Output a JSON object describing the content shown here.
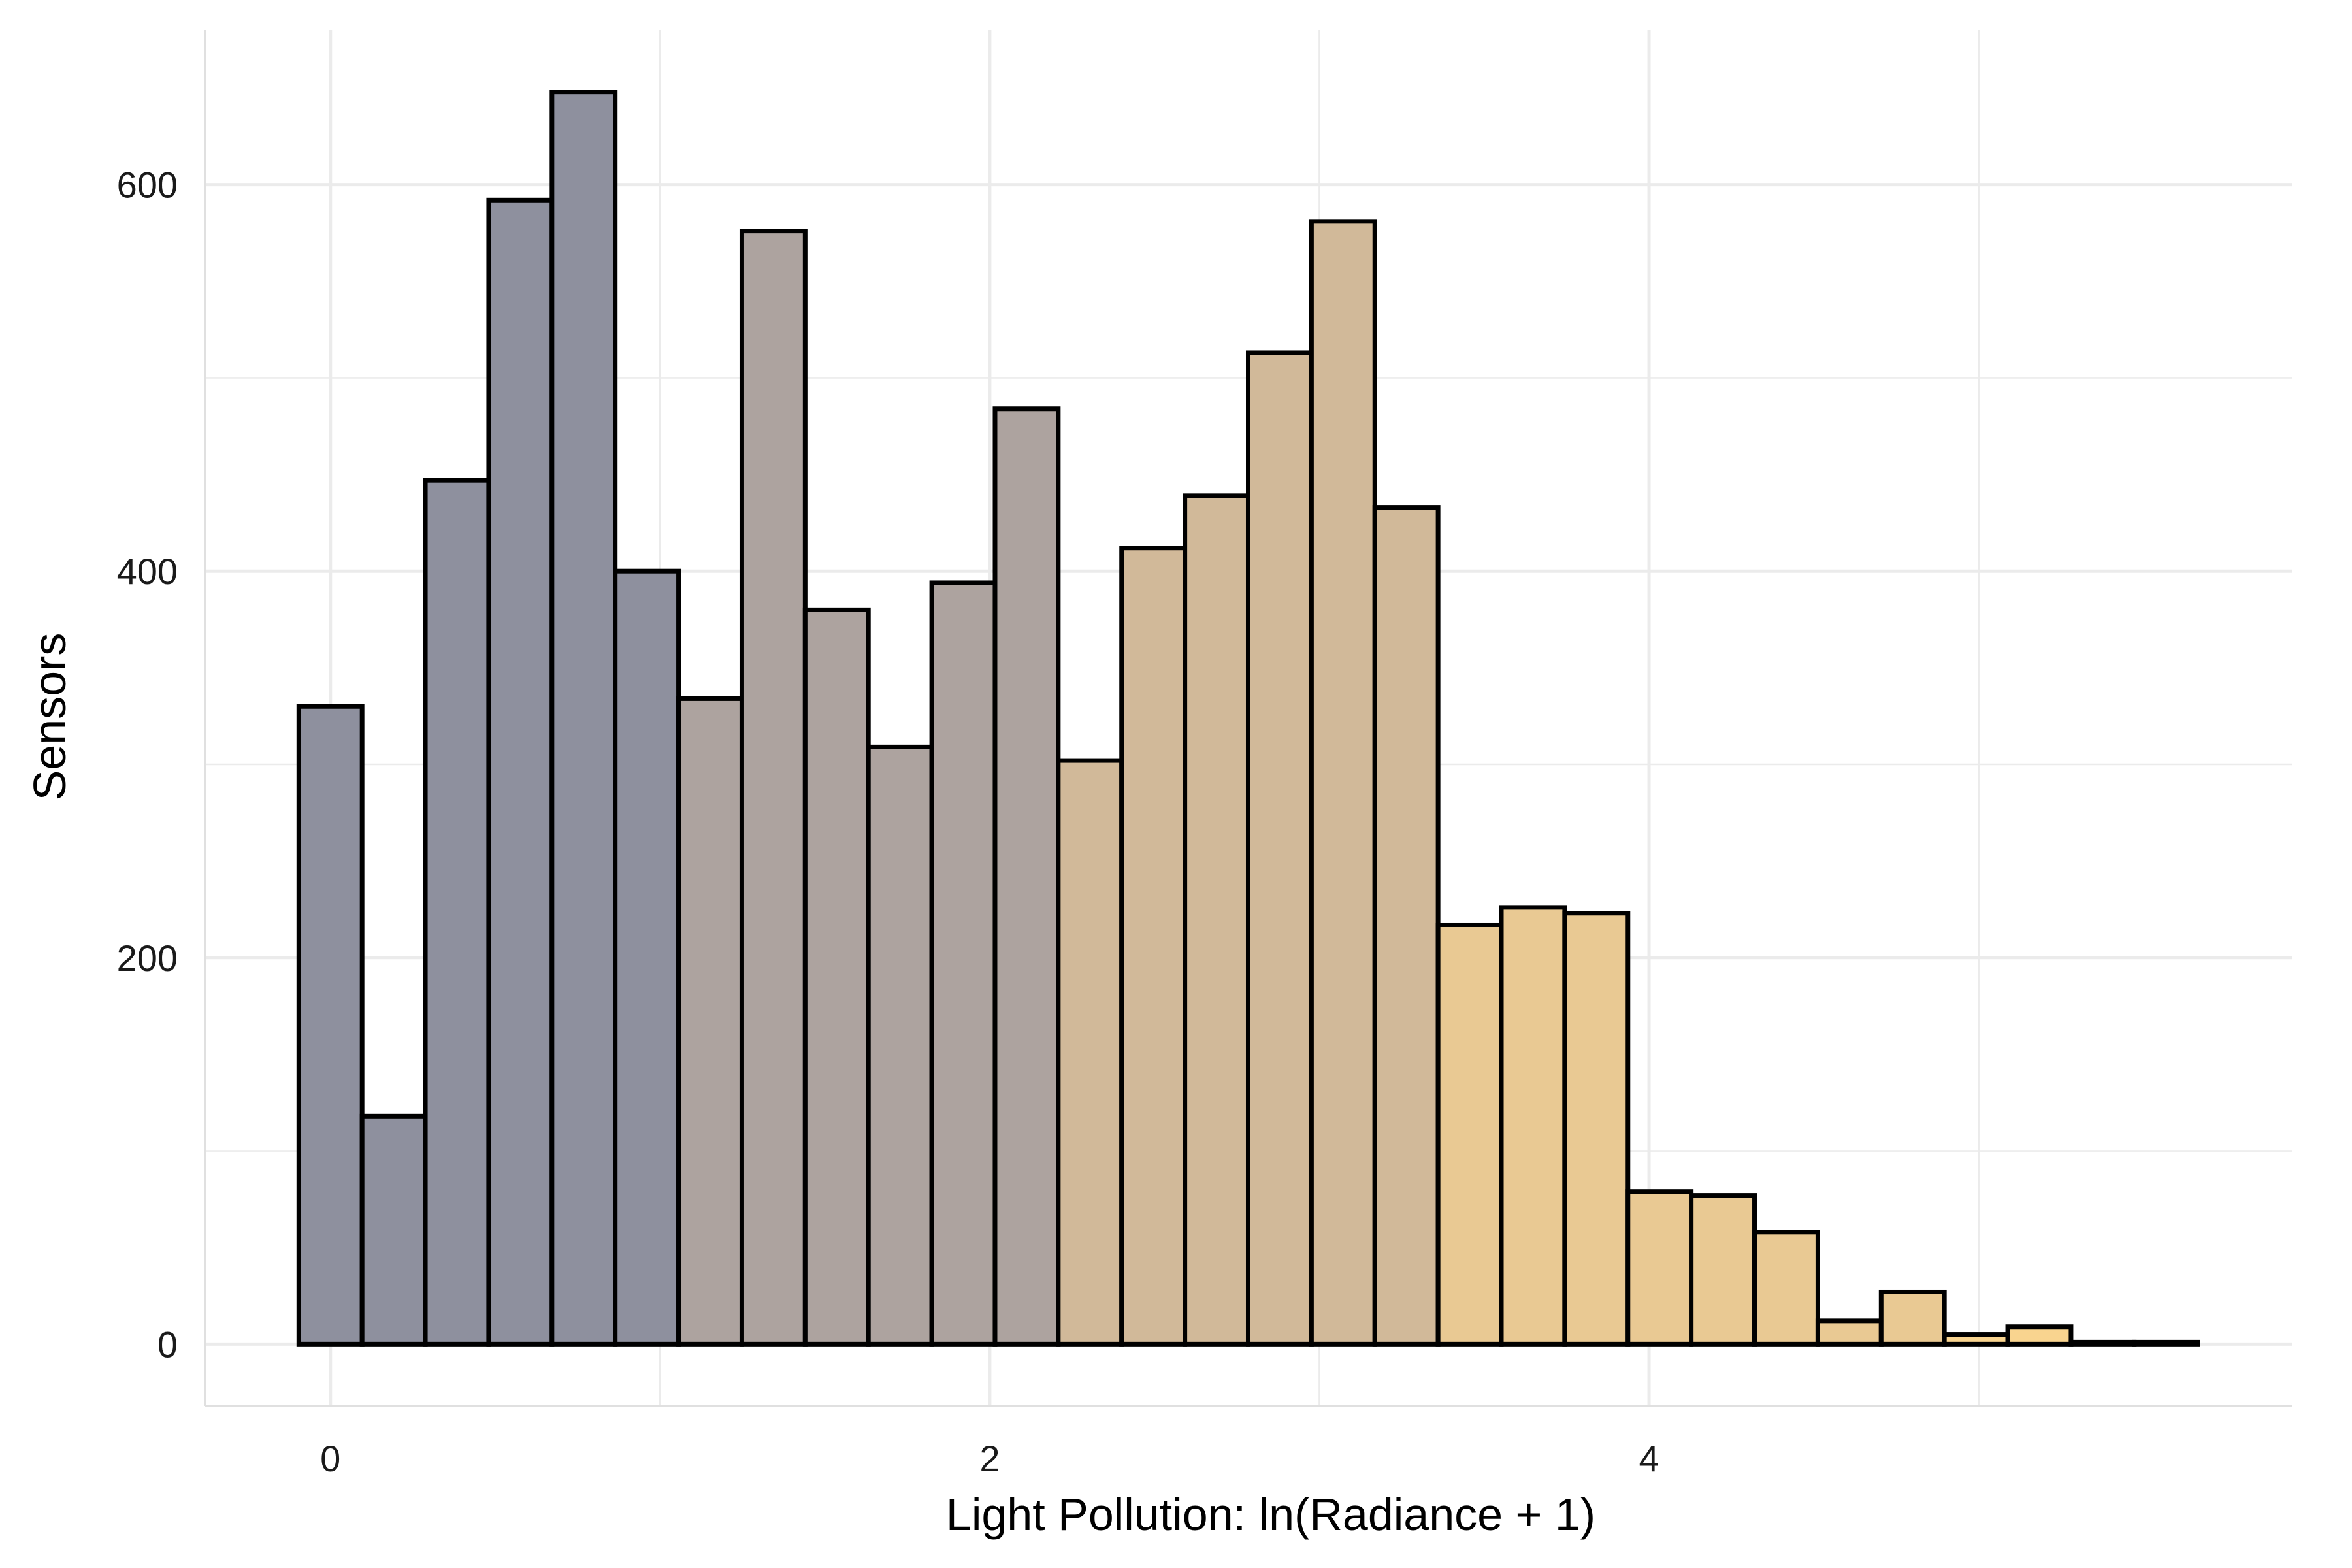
{
  "chart_data": {
    "type": "bar",
    "subtype": "histogram",
    "title": "",
    "xlabel": "Light Pollution: ln(Radiance + 1)",
    "ylabel": "Sensors",
    "xlim": [
      -0.38,
      5.95
    ],
    "ylim": [
      -32,
      680
    ],
    "x_ticks": [
      0,
      2,
      4
    ],
    "y_ticks": [
      0,
      200,
      400,
      600
    ],
    "grid": true,
    "legend": "none",
    "bin_width": 0.192,
    "bin_start": -0.096,
    "values": [
      330,
      118,
      447,
      592,
      648,
      400,
      334,
      576,
      380,
      309,
      394,
      484,
      302,
      412,
      439,
      513,
      581,
      433,
      217,
      226,
      223,
      79,
      77,
      58,
      12,
      27,
      5,
      9,
      1,
      1
    ],
    "colors": {
      "low": "#8e909e",
      "mid": "#ada39f",
      "high": "#d1b999",
      "top": "#e9c993",
      "max": "#f9d48f",
      "outline": "#000000"
    }
  }
}
